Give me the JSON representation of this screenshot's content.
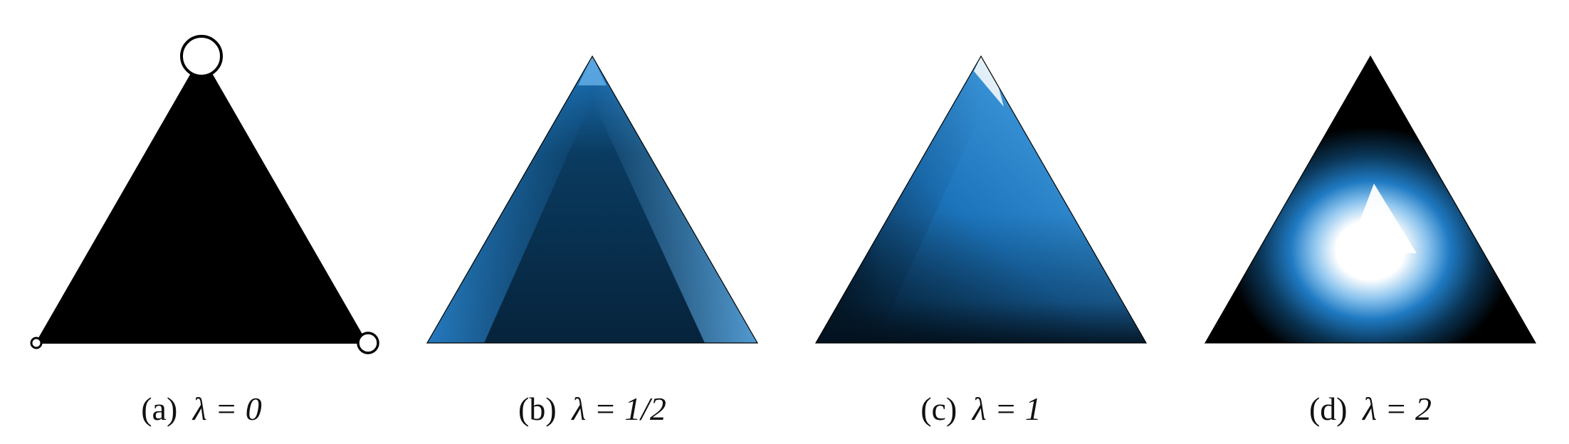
{
  "panels": [
    {
      "id": "a",
      "caption": {
        "prefix": "(a)",
        "math": "λ = 0"
      },
      "style": "vertex-markers",
      "fill": "#000000",
      "vertex_markers": [
        {
          "vertex": "top",
          "relative_size": "large"
        },
        {
          "vertex": "bottom-left",
          "relative_size": "small"
        },
        {
          "vertex": "bottom-right",
          "relative_size": "medium"
        }
      ]
    },
    {
      "id": "b",
      "caption": {
        "prefix": "(b)",
        "math": "λ = 1/2"
      },
      "style": "density",
      "pattern": "bright-near-edges-dark-center"
    },
    {
      "id": "c",
      "caption": {
        "prefix": "(c)",
        "math": "λ = 1"
      },
      "style": "density",
      "pattern": "bright-upper-right-dark-bottom-and-left-edge"
    },
    {
      "id": "d",
      "caption": {
        "prefix": "(d)",
        "math": "λ = 2"
      },
      "style": "density",
      "pattern": "white-center-dark-edges"
    }
  ],
  "colors": {
    "dark": "#000000",
    "deep_blue": "#062b45",
    "blue": "#1e7ac4",
    "light_blue": "#5aa8e2",
    "white": "#ffffff",
    "outline": "#000000"
  }
}
